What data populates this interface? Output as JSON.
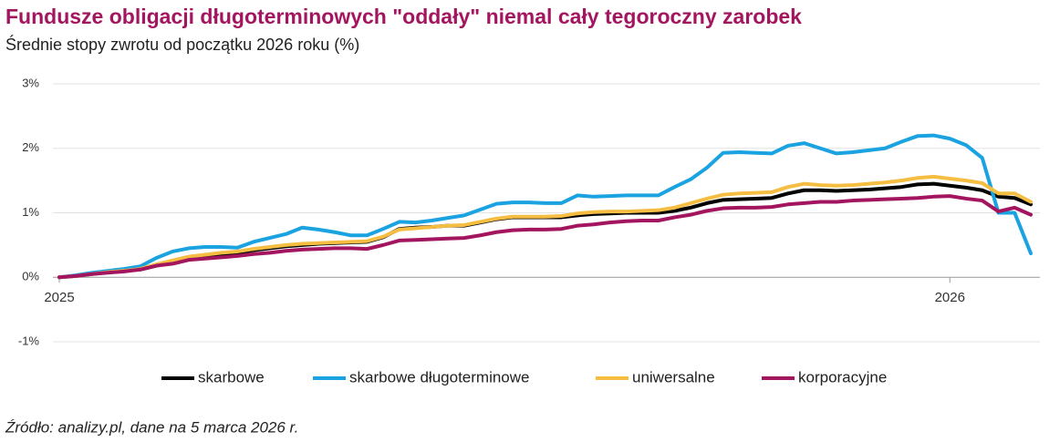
{
  "chart_data": {
    "type": "line",
    "title": "Fundusze obligacji długoterminowych \"oddały\" niemal cały tegoroczny zarobek",
    "subtitle": "Średnie stopy zwrotu od początku 2026 roku (%)",
    "source": "Źródło: analizy.pl, dane na 5 marca 2026 r.",
    "categories": [
      "2025",
      null,
      null,
      null,
      null,
      null,
      null,
      null,
      null,
      null,
      null,
      null,
      null,
      null,
      null,
      null,
      null,
      null,
      null,
      null,
      null,
      null,
      null,
      null,
      null,
      null,
      null,
      null,
      null,
      null,
      null,
      null,
      null,
      null,
      null,
      null,
      null,
      null,
      null,
      null,
      null,
      null,
      null,
      null,
      null,
      null,
      null,
      null,
      null,
      null,
      null,
      null,
      null,
      null,
      null,
      "2026",
      null,
      null,
      null,
      null,
      null
    ],
    "series": [
      {
        "name": "skarbowe",
        "color": "#000000",
        "values": [
          0,
          0.02,
          0.05,
          0.08,
          0.1,
          0.12,
          0.18,
          0.24,
          0.3,
          0.33,
          0.36,
          0.38,
          0.42,
          0.45,
          0.48,
          0.5,
          0.52,
          0.53,
          0.54,
          0.55,
          0.62,
          0.75,
          0.77,
          0.78,
          0.8,
          0.8,
          0.85,
          0.9,
          0.93,
          0.93,
          0.93,
          0.93,
          0.96,
          0.98,
          0.99,
          1.0,
          1.0,
          1.0,
          1.03,
          1.08,
          1.15,
          1.2,
          1.21,
          1.22,
          1.23,
          1.3,
          1.35,
          1.35,
          1.34,
          1.35,
          1.36,
          1.38,
          1.4,
          1.44,
          1.45,
          1.42,
          1.39,
          1.35,
          1.25,
          1.23,
          1.13
        ]
      },
      {
        "name": "skarbowe długoterminowe",
        "color": "#1aa3e0",
        "values": [
          0,
          0.03,
          0.07,
          0.1,
          0.13,
          0.17,
          0.3,
          0.4,
          0.45,
          0.47,
          0.47,
          0.46,
          0.55,
          0.61,
          0.67,
          0.77,
          0.74,
          0.7,
          0.65,
          0.65,
          0.75,
          0.86,
          0.85,
          0.88,
          0.92,
          0.96,
          1.05,
          1.14,
          1.16,
          1.16,
          1.15,
          1.15,
          1.27,
          1.25,
          1.26,
          1.27,
          1.27,
          1.27,
          1.4,
          1.52,
          1.7,
          1.93,
          1.94,
          1.93,
          1.92,
          2.04,
          2.08,
          2.0,
          1.92,
          1.94,
          1.97,
          2.0,
          2.1,
          2.19,
          2.2,
          2.15,
          2.05,
          1.85,
          1.0,
          1.0,
          0.37
        ]
      },
      {
        "name": "uniwersalne",
        "color": "#f5bd42",
        "values": [
          0,
          0.02,
          0.05,
          0.08,
          0.1,
          0.13,
          0.2,
          0.26,
          0.32,
          0.35,
          0.38,
          0.4,
          0.44,
          0.47,
          0.5,
          0.52,
          0.53,
          0.54,
          0.55,
          0.56,
          0.63,
          0.74,
          0.76,
          0.78,
          0.8,
          0.81,
          0.86,
          0.91,
          0.94,
          0.94,
          0.94,
          0.95,
          0.99,
          1.01,
          1.02,
          1.02,
          1.03,
          1.04,
          1.08,
          1.15,
          1.22,
          1.28,
          1.3,
          1.31,
          1.32,
          1.4,
          1.45,
          1.43,
          1.42,
          1.43,
          1.45,
          1.47,
          1.5,
          1.54,
          1.56,
          1.53,
          1.5,
          1.46,
          1.3,
          1.3,
          1.17
        ]
      },
      {
        "name": "korporacyjne",
        "color": "#a3165f",
        "values": [
          0,
          0.02,
          0.05,
          0.07,
          0.09,
          0.12,
          0.18,
          0.21,
          0.27,
          0.29,
          0.31,
          0.33,
          0.36,
          0.38,
          0.41,
          0.43,
          0.44,
          0.45,
          0.45,
          0.44,
          0.5,
          0.57,
          0.58,
          0.59,
          0.6,
          0.61,
          0.65,
          0.7,
          0.73,
          0.74,
          0.74,
          0.75,
          0.8,
          0.82,
          0.85,
          0.87,
          0.88,
          0.88,
          0.93,
          0.97,
          1.03,
          1.07,
          1.08,
          1.08,
          1.09,
          1.13,
          1.15,
          1.17,
          1.17,
          1.19,
          1.2,
          1.21,
          1.22,
          1.23,
          1.25,
          1.26,
          1.22,
          1.19,
          1.02,
          1.08,
          0.97
        ]
      }
    ],
    "ylim": [
      -1,
      3
    ],
    "yticks": [
      {
        "value": -1,
        "label": "-1%"
      },
      {
        "value": 0,
        "label": "0%"
      },
      {
        "value": 1,
        "label": "1%"
      },
      {
        "value": 2,
        "label": "2%"
      },
      {
        "value": 3,
        "label": "3%"
      }
    ],
    "grid": true,
    "legend": "bottom"
  }
}
